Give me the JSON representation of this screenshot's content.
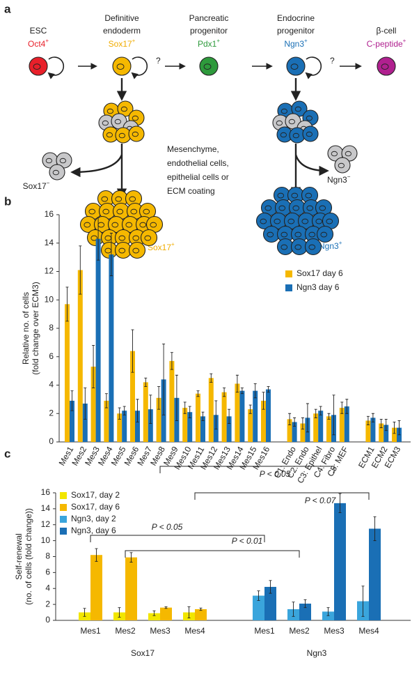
{
  "panel_labels": [
    "a",
    "b",
    "c"
  ],
  "diagram": {
    "stages": [
      {
        "name": [
          "ESC"
        ],
        "marker": "Oct4",
        "sign": "+"
      },
      {
        "name": [
          "Definitive",
          "endoderm"
        ],
        "marker": "Sox17",
        "sign": "+"
      },
      {
        "name": [
          "Pancreatic",
          "progenitor"
        ],
        "marker": "Pdx1",
        "sign": "+"
      },
      {
        "name": [
          "Endocrine",
          "progenitor"
        ],
        "marker": "Ngn3",
        "sign": "+"
      },
      {
        "name": [
          "β-cell"
        ],
        "marker": "C-peptide",
        "sign": "+"
      }
    ],
    "question_marks": [
      "?",
      "?"
    ],
    "conditions": [
      "Mesenchyme,",
      "endothelial cells,",
      "epithelial cells or",
      "ECM coating"
    ],
    "sox17_negative": {
      "marker": "Sox17",
      "sign": "−"
    },
    "sox17_positive": {
      "marker": "Sox17",
      "sign": "+"
    },
    "ngn3_negative": {
      "marker": "Ngn3",
      "sign": "−"
    },
    "ngn3_positive": {
      "marker": "Ngn3",
      "sign": "+"
    }
  },
  "chart_data": [
    {
      "type": "bar",
      "ylabel": [
        "Relative no. of cells",
        "(fold change over ECM3)"
      ],
      "categories": [
        "Mes1",
        "Mes2",
        "Mes3",
        "Mes4",
        "Mes5",
        "Mes6",
        "Mes7",
        "Mes8",
        "Mes9",
        "Mes10",
        "Mes11",
        "Mes12",
        "Mes13",
        "Mes14",
        "Mes15",
        "Mes16",
        null,
        "C1: Endo",
        "C2: Endo",
        "C3: Epithel",
        "C4: Fibro",
        "C5: MEF",
        null,
        "ECM1",
        "ECM2",
        "ECM3"
      ],
      "series": [
        {
          "name": "Sox17 day 6",
          "color": "#f5b800",
          "values": [
            9.7,
            12.1,
            5.3,
            2.9,
            2.0,
            6.4,
            4.2,
            3.1,
            5.7,
            2.4,
            3.4,
            4.5,
            3.5,
            4.1,
            2.3,
            2.9,
            null,
            1.6,
            1.3,
            2.0,
            1.8,
            2.4,
            null,
            1.5,
            1.3,
            1.0
          ],
          "errors": [
            1.2,
            1.7,
            1.5,
            0.5,
            0.4,
            1.5,
            0.3,
            0.8,
            0.6,
            0.4,
            0.2,
            0.3,
            0.3,
            0.6,
            0.3,
            0.6,
            null,
            0.4,
            0.4,
            0.3,
            0.2,
            0.4,
            null,
            0.3,
            0.3,
            0.4
          ]
        },
        {
          "name": "Ngn3 day 6",
          "color": "#1a6fb5",
          "values": [
            2.9,
            2.7,
            14.3,
            13.2,
            2.2,
            2.2,
            2.3,
            4.4,
            3.1,
            2.1,
            1.8,
            1.9,
            1.8,
            3.6,
            3.6,
            3.7,
            null,
            1.4,
            1.7,
            2.2,
            1.9,
            2.5,
            null,
            1.7,
            1.2,
            1.0
          ],
          "errors": [
            0.7,
            1.1,
            1.5,
            1.5,
            0.3,
            0.8,
            1.0,
            2.5,
            1.6,
            0.4,
            0.3,
            1.0,
            0.5,
            0.2,
            0.5,
            0.2,
            null,
            0.3,
            1.0,
            0.3,
            1.4,
            0.5,
            null,
            0.3,
            0.4,
            0.5
          ]
        }
      ],
      "ylim": [
        0,
        16
      ],
      "yticks": [
        0,
        2,
        4,
        6,
        8,
        10,
        12,
        14,
        16
      ],
      "grid": false,
      "legend": "upper right"
    },
    {
      "type": "bar",
      "ylabel": [
        "Self-renewal",
        "(no. of cells (fold change))"
      ],
      "categories": [
        "Mes1",
        "Mes2",
        "Mes3",
        "Mes4",
        null,
        "Mes1",
        "Mes2",
        "Mes3",
        "Mes4"
      ],
      "group_labels": [
        "Sox17",
        "Ngn3"
      ],
      "series": [
        {
          "name": "Sox17, day 2",
          "color": "#f2e600",
          "values": [
            1.0,
            1.0,
            0.9,
            1.0,
            null,
            null,
            null,
            null,
            null
          ],
          "errors": [
            0.5,
            0.6,
            0.3,
            0.7,
            null,
            null,
            null,
            null,
            null
          ]
        },
        {
          "name": "Sox17, day 6",
          "color": "#f5b800",
          "values": [
            8.2,
            7.9,
            1.6,
            1.4,
            null,
            null,
            null,
            null,
            null
          ],
          "errors": [
            0.8,
            0.6,
            0.1,
            0.15,
            null,
            null,
            null,
            null,
            null
          ]
        },
        {
          "name": "Ngn3, day  2",
          "color": "#3aa5dc",
          "values": [
            null,
            null,
            null,
            null,
            null,
            3.1,
            1.4,
            1.1,
            2.4
          ],
          "errors": [
            null,
            null,
            null,
            null,
            null,
            0.6,
            0.9,
            0.5,
            1.9
          ]
        },
        {
          "name": "Ngn3, day 6",
          "color": "#1a6fb5",
          "values": [
            null,
            null,
            null,
            null,
            null,
            4.2,
            2.1,
            14.7,
            11.5
          ],
          "errors": [
            null,
            null,
            null,
            null,
            null,
            0.8,
            0.5,
            1.2,
            1.5
          ]
        }
      ],
      "annotations": [
        "P < 0.05",
        "P < 0.07",
        "P < 0.05",
        "P < 0.01"
      ],
      "ylim": [
        0,
        16
      ],
      "yticks": [
        0,
        2,
        4,
        6,
        8,
        10,
        12,
        14,
        16
      ],
      "grid": false,
      "legend": "upper left"
    }
  ]
}
